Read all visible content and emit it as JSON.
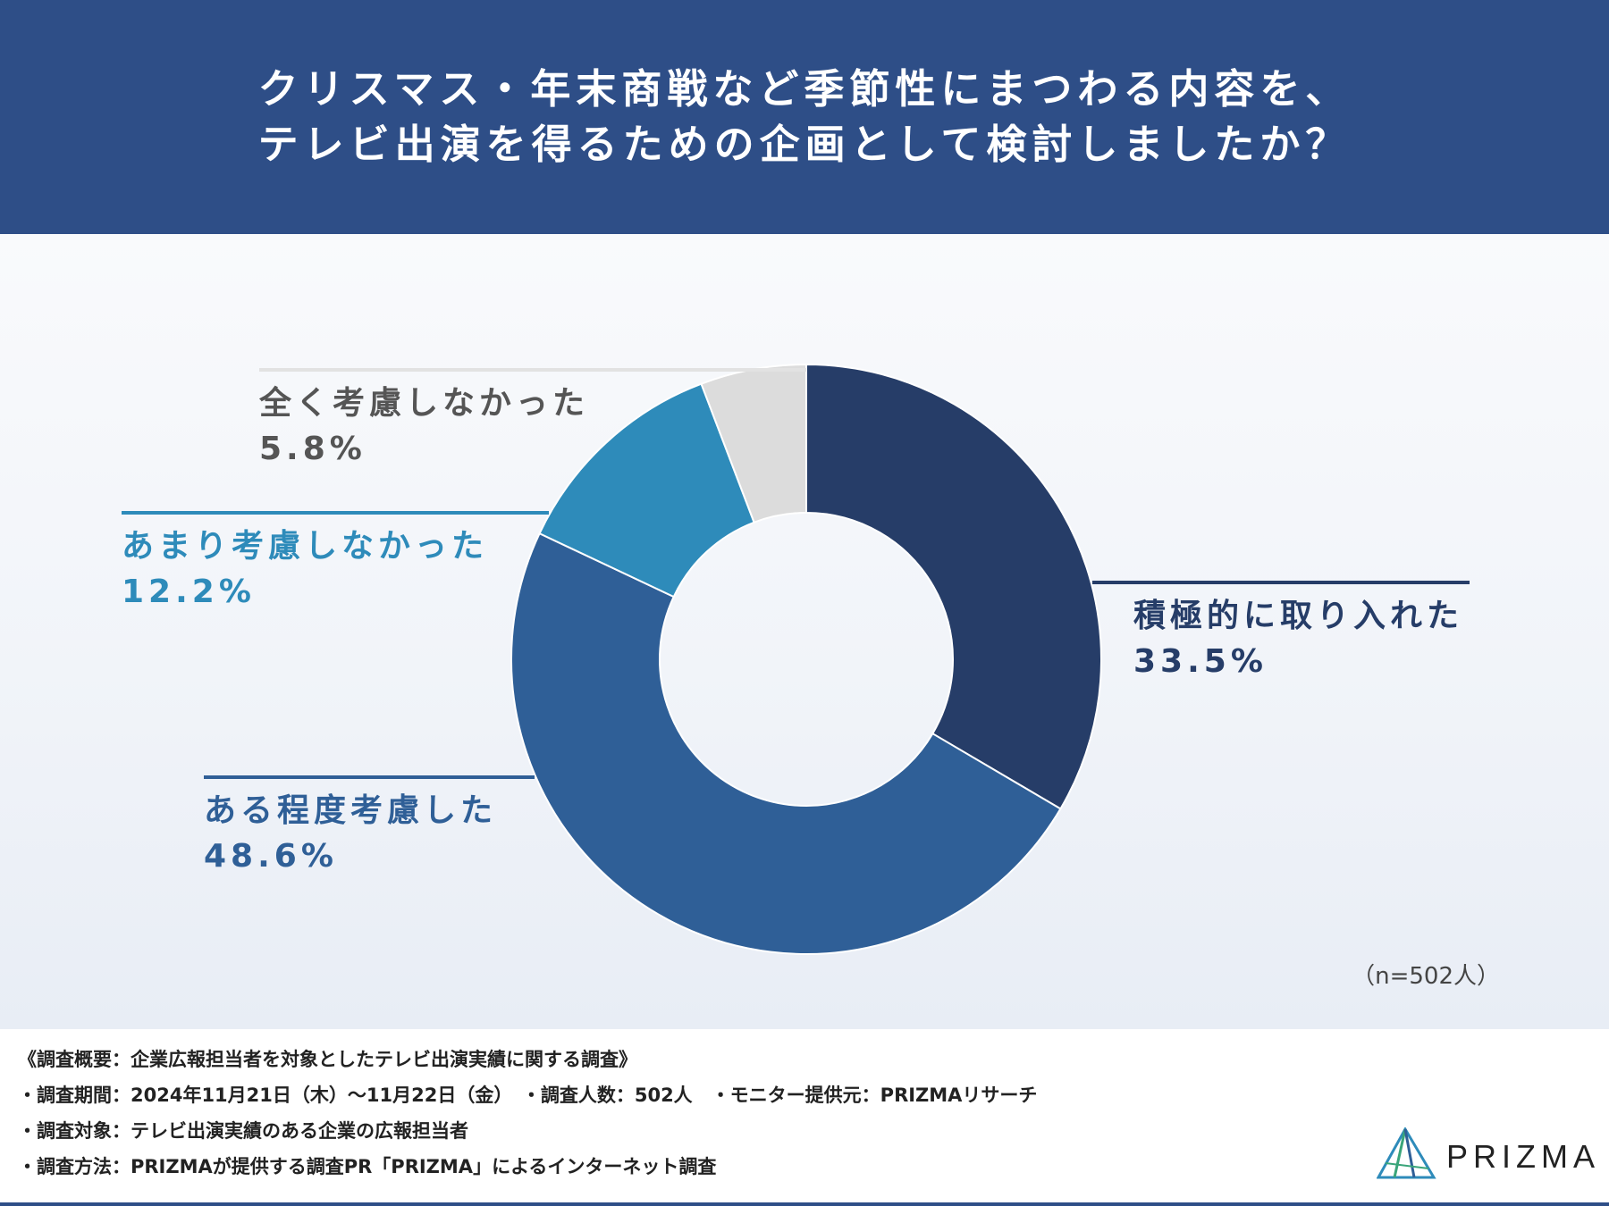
{
  "header": {
    "title_line1": "クリスマス・年末商戦など季節性にまつわる内容を、",
    "title_line2": "テレビ出演を得るための企画として検討しましたか？"
  },
  "chart_data": {
    "type": "pie",
    "categories": [
      "積極的に取り入れた",
      "ある程度考慮した",
      "あまり考慮しなかった",
      "全く考慮しなかった"
    ],
    "values": [
      33.5,
      48.6,
      12.2,
      5.8
    ],
    "value_labels": [
      "33.5%",
      "48.6%",
      "12.2%",
      "5.8%"
    ],
    "colors": [
      "#263d68",
      "#2f5f97",
      "#2e8bba",
      "#dcdcdc"
    ],
    "label_colors": [
      "#263d68",
      "#2f5f97",
      "#2e8bba",
      "#555555"
    ],
    "donut": true,
    "start": "12 o'clock",
    "direction": "clockwise",
    "n_label": "（n=502人）"
  },
  "footer": {
    "line1": "《調査概要：企業広報担当者を対象としたテレビ出演実績に関する調査》",
    "line2": "・調査期間：2024年11月21日（木）〜11月22日（金）　・調査人数：502人　・モニター提供元：PRIZMAリサーチ",
    "line3": "・調査対象：テレビ出演実績のある企業の広報担当者",
    "line4": "・調査方法：PRIZMAが提供する調査PR「PRIZMA」によるインターネット調査",
    "logo_text": "PRIZMA"
  }
}
